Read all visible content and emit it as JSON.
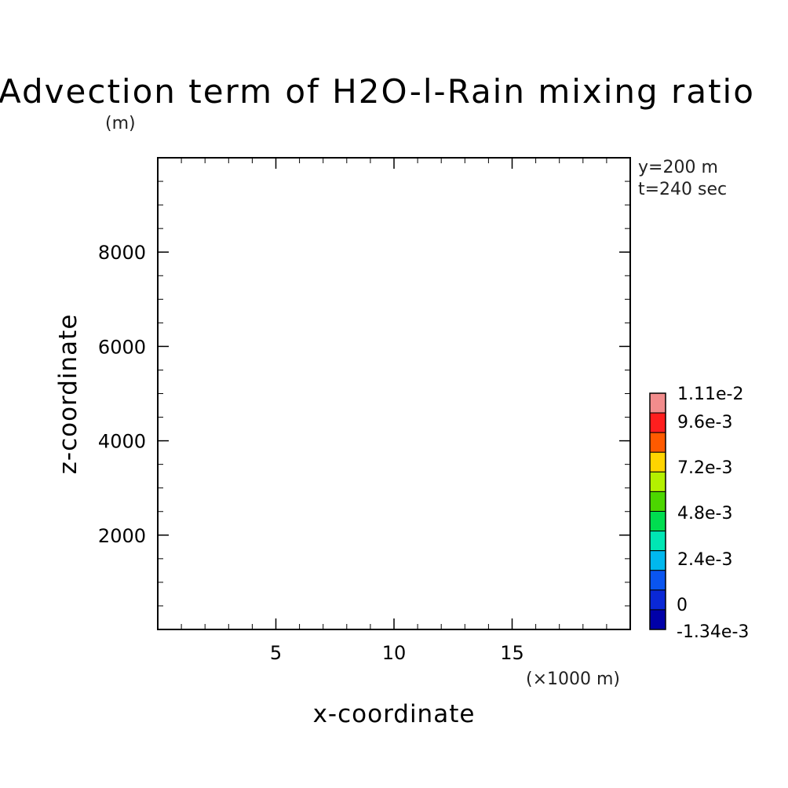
{
  "chart_data": {
    "type": "heatmap",
    "title": "Advection term of H2O-l-Rain mixing ratio",
    "y_unit_label": "(m)",
    "x_unit_label": "(×1000 m)",
    "xlabel": "x-coordinate",
    "ylabel": "z-coordinate",
    "annotations": [
      "y=200 m",
      "t=240 sec"
    ],
    "xlim": [
      0,
      20
    ],
    "ylim": [
      0,
      10000
    ],
    "x_ticks": [
      5,
      10,
      15
    ],
    "y_ticks": [
      2000,
      4000,
      6000,
      8000
    ],
    "values": [],
    "colorbar": {
      "labels": [
        "1.11e-2",
        "9.6e-3",
        "7.2e-3",
        "4.8e-3",
        "2.4e-3",
        "0",
        "-1.34e-3"
      ],
      "colors": [
        "#f28c8c",
        "#ff1f1f",
        "#ff5a00",
        "#ffd400",
        "#b4f000",
        "#4cd600",
        "#00dd50",
        "#00e6b4",
        "#00b8ee",
        "#0a55f0",
        "#0a28d6",
        "#0000a8"
      ]
    }
  }
}
